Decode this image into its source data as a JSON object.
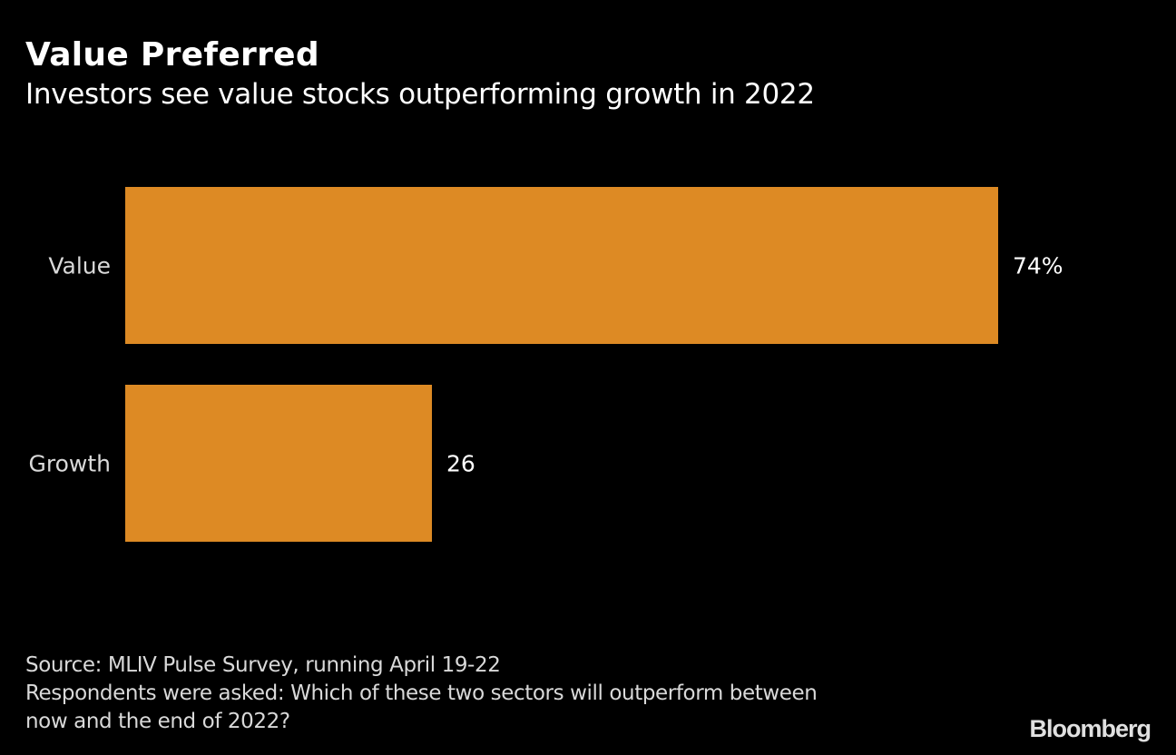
{
  "header": {
    "title": "Value Preferred",
    "subtitle": "Investors see value stocks outperforming growth in 2022"
  },
  "chart_data": {
    "type": "bar",
    "orientation": "horizontal",
    "title": "Value Preferred",
    "subtitle": "Investors see value stocks outperforming growth in 2022",
    "categories": [
      "Value",
      "Growth"
    ],
    "values": [
      74,
      26
    ],
    "value_labels": [
      "74%",
      "26"
    ],
    "unit": "%",
    "xlim": [
      0,
      100
    ],
    "xlabel": "",
    "ylabel": "",
    "grid": false,
    "bar_color": "#dd8a24"
  },
  "footer": {
    "source": "Source: MLIV Pulse Survey, running April 19-22",
    "note_line1": "Respondents were asked: Which of these two sectors will outperform between",
    "note_line2": "now and the end of 2022?",
    "brand": "Bloomberg"
  }
}
